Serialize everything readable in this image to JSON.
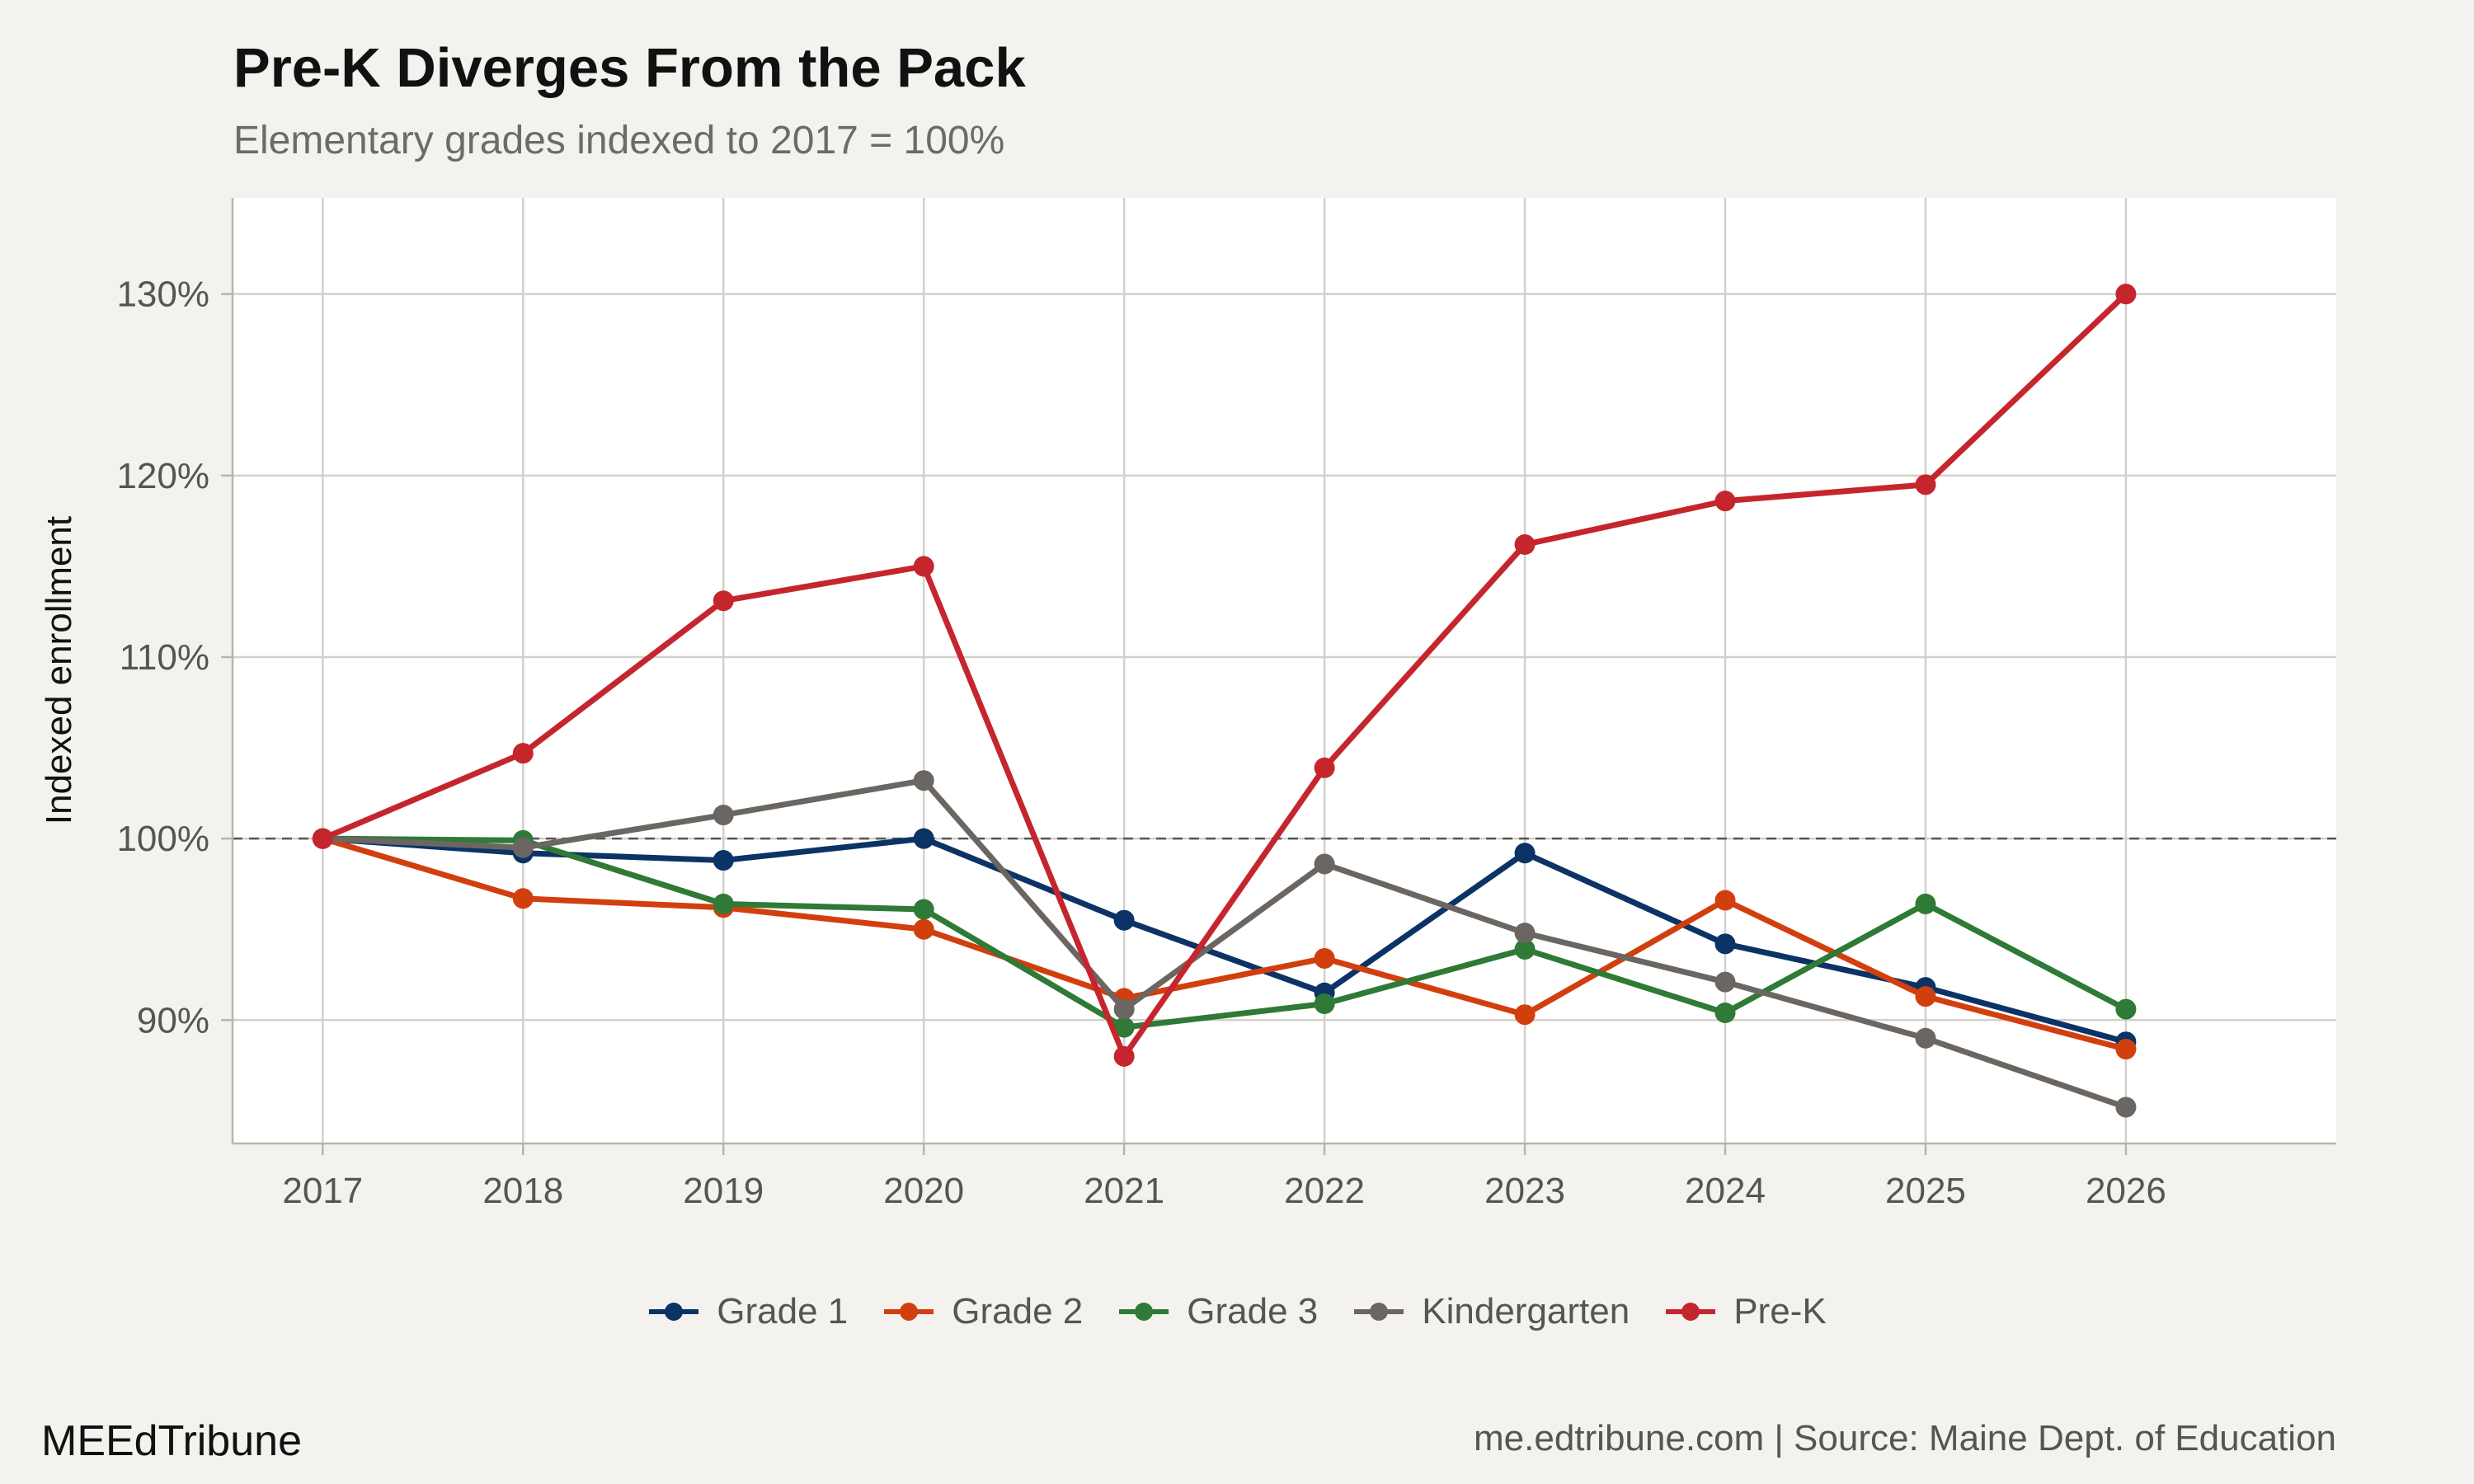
{
  "brand": "MEEdTribune",
  "caption": "me.edtribune.com | Source: Maine Dept. of Education",
  "chart_data": {
    "type": "line",
    "title": "Pre-K Diverges From the Pack",
    "subtitle": "Elementary grades indexed to 2017 = 100%",
    "xlabel": "",
    "ylabel": "Indexed enrollment",
    "x": [
      2017,
      2018,
      2019,
      2020,
      2021,
      2022,
      2023,
      2024,
      2025,
      2026
    ],
    "x_tick_labels": [
      "2017",
      "2018",
      "2019",
      "2020",
      "2021",
      "2022",
      "2023",
      "2024",
      "2025",
      "2026"
    ],
    "xlim": [
      2016.55,
      2027.05
    ],
    "ylim": [
      83.2,
      135.3
    ],
    "y_ticks": [
      90,
      100,
      110,
      120,
      130
    ],
    "y_tick_labels": [
      "90%",
      "100%",
      "110%",
      "120%",
      "130%"
    ],
    "reference_line": 100,
    "grid": true,
    "legend_position": "bottom",
    "panel_background": "#ffffff",
    "series": [
      {
        "name": "Grade 1",
        "color": "#0b3366",
        "values": [
          100,
          99.2,
          98.8,
          100,
          95.5,
          91.5,
          99.2,
          94.2,
          91.8,
          88.8
        ]
      },
      {
        "name": "Grade 2",
        "color": "#d23f0f",
        "values": [
          100,
          96.7,
          96.2,
          95,
          91.2,
          93.4,
          90.3,
          96.6,
          91.3,
          88.4
        ]
      },
      {
        "name": "Grade 3",
        "color": "#2e7a36",
        "values": [
          100,
          99.9,
          96.4,
          96.1,
          89.6,
          90.9,
          93.9,
          90.4,
          96.4,
          90.6
        ]
      },
      {
        "name": "Kindergarten",
        "color": "#6b6661",
        "values": [
          100,
          99.5,
          101.3,
          103.2,
          90.6,
          98.6,
          94.8,
          92.1,
          89,
          85.2
        ]
      },
      {
        "name": "Pre-K",
        "color": "#c5262d",
        "values": [
          100,
          104.7,
          113.1,
          115,
          88,
          103.9,
          116.2,
          118.6,
          119.5,
          130
        ]
      }
    ]
  }
}
